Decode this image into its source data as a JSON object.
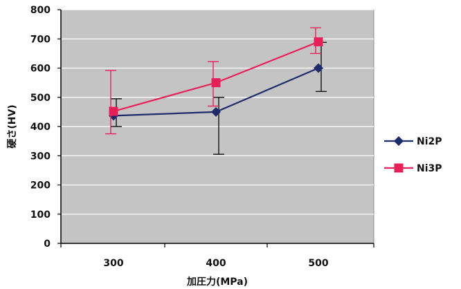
{
  "chart_data": {
    "type": "line",
    "xlabel": "加圧力(MPa)",
    "ylabel": "硬さ(HV)",
    "categories": [
      "300",
      "400",
      "500"
    ],
    "ylim": [
      0,
      800
    ],
    "yticks": [
      0,
      100,
      200,
      300,
      400,
      500,
      600,
      700,
      800
    ],
    "grid": true,
    "legend": "right",
    "series": [
      {
        "name": "Ni2P",
        "color": "#1f2a6b",
        "marker": "diamond",
        "values": [
          437,
          450,
          600
        ],
        "error_low": [
          400,
          305,
          520
        ],
        "error_high": [
          495,
          500,
          688
        ]
      },
      {
        "name": "Ni3P",
        "color": "#e8205a",
        "marker": "square",
        "values": [
          452,
          550,
          690
        ],
        "error_low": [
          375,
          470,
          650
        ],
        "error_high": [
          592,
          622,
          738
        ]
      }
    ]
  }
}
